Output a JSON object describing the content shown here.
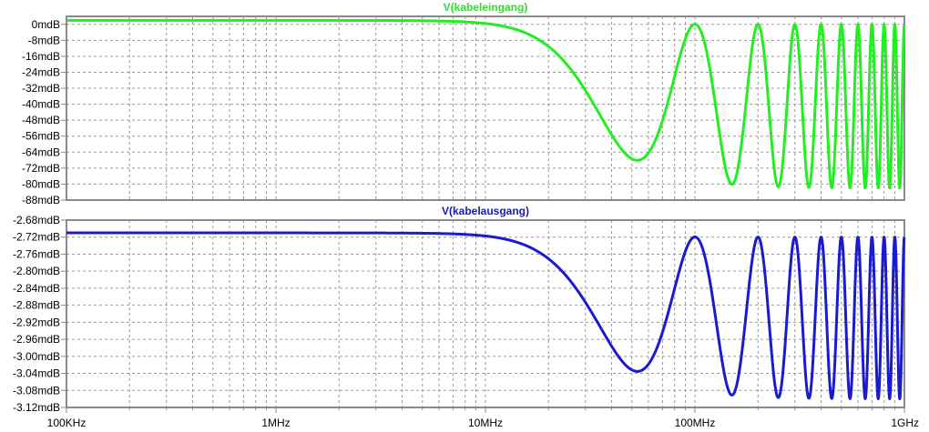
{
  "chart_data": [
    {
      "type": "line",
      "title": "V(kabeleingang)",
      "title_color": "#33dd33",
      "x_scale": "log",
      "xlim_hz": [
        100000,
        1000000000
      ],
      "ylim": [
        -88,
        0
      ],
      "ylim_top_margin": 4,
      "y_ticks": [
        0,
        -8,
        -16,
        -24,
        -32,
        -40,
        -48,
        -56,
        -64,
        -72,
        -80,
        -88
      ],
      "y_unit": "mdB",
      "y_tick_labels": [
        "0mdB",
        "-8mdB",
        "-16mdB",
        "-24mdB",
        "-32mdB",
        "-40mdB",
        "-48mdB",
        "-56mdB",
        "-64mdB",
        "-72mdB",
        "-80mdB",
        "-88mdB"
      ],
      "grid": true,
      "series": [
        {
          "color": "#22ee22",
          "model": "cable_reflection",
          "low_freq_level": 2,
          "max_level": 0,
          "min_level": -82,
          "first_min_hz": 50000000,
          "first_max_hz": 100000000
        }
      ]
    },
    {
      "type": "line",
      "title": "V(kabelausgang)",
      "title_color": "#1a1aaa",
      "x_scale": "log",
      "xlim_hz": [
        100000,
        1000000000
      ],
      "ylim": [
        -3.12,
        -2.68
      ],
      "y_ticks": [
        -2.68,
        -2.72,
        -2.76,
        -2.8,
        -2.84,
        -2.88,
        -2.92,
        -2.96,
        -3.0,
        -3.04,
        -3.08,
        -3.12
      ],
      "y_unit": "mdB",
      "y_tick_labels": [
        "-2.68mdB",
        "-2.72mdB",
        "-2.76mdB",
        "-2.80mdB",
        "-2.84mdB",
        "-2.88mdB",
        "-2.92mdB",
        "-2.96mdB",
        "-3.00mdB",
        "-3.04mdB",
        "-3.08mdB",
        "-3.12mdB"
      ],
      "grid": true,
      "series": [
        {
          "color": "#1a1ad0",
          "model": "cable_reflection",
          "low_freq_level": -2.71,
          "max_level": -2.72,
          "min_level": -3.1,
          "first_min_hz": 50000000,
          "first_max_hz": 100000000
        }
      ]
    }
  ],
  "x_ticks_hz": [
    100000,
    1000000,
    10000000,
    100000000,
    1000000000
  ],
  "x_tick_labels": [
    "100KHz",
    "1MHz",
    "10MHz",
    "100MHz",
    "1GHz"
  ]
}
